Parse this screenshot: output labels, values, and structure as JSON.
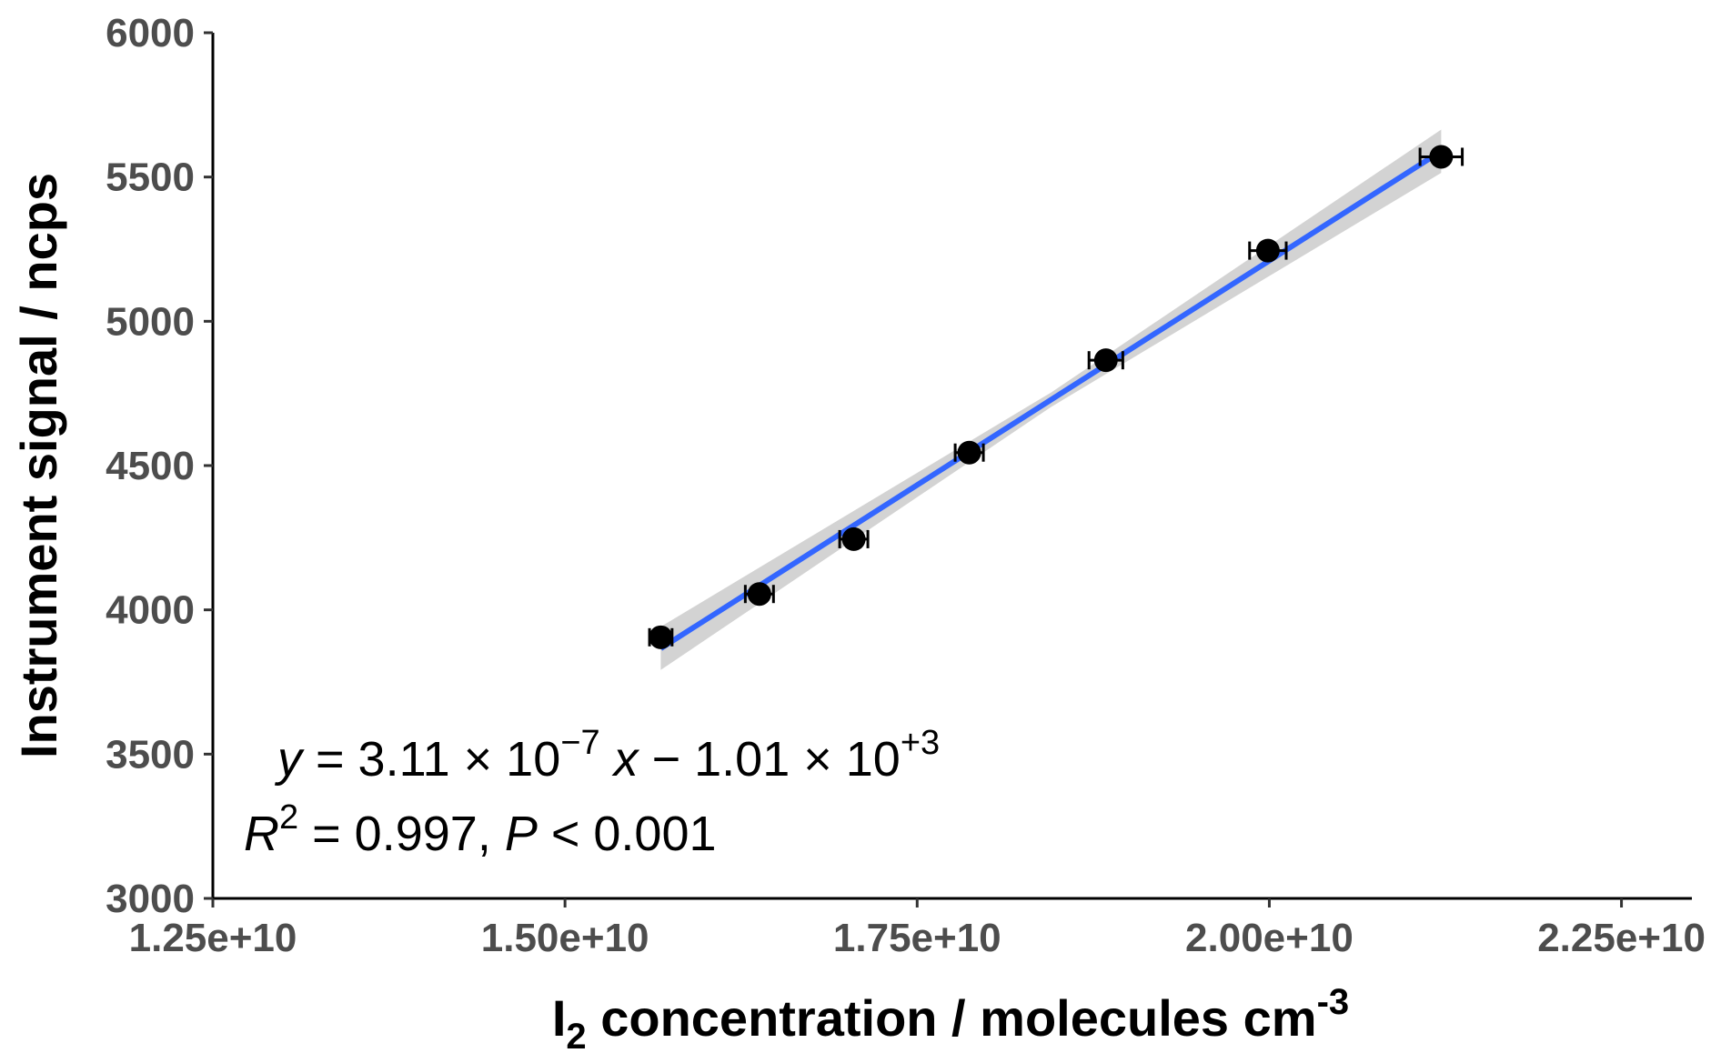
{
  "chart_data": {
    "type": "scatter",
    "xlabel": {
      "base": "I",
      "sub": "2",
      "rest": " concentration / molecules cm",
      "sup": "-3"
    },
    "ylabel": "Instrument signal / ncps",
    "xlim": [
      12500000000.0,
      23000000000.0
    ],
    "ylim": [
      3000,
      6000
    ],
    "x_ticks": [
      12500000000.0,
      15000000000.0,
      17500000000.0,
      20000000000.0,
      22500000000.0
    ],
    "x_tick_labels": [
      "1.25e+10",
      "1.50e+10",
      "1.75e+10",
      "2.00e+10",
      "2.25e+10"
    ],
    "y_ticks": [
      3000,
      3500,
      4000,
      4500,
      5000,
      5500,
      6000
    ],
    "y_tick_labels": [
      "3000",
      "3500",
      "4000",
      "4500",
      "5000",
      "5500",
      "6000"
    ],
    "points": [
      {
        "x": 15680000000.0,
        "y": 3905,
        "xerr": 80000000.0
      },
      {
        "x": 16380000000.0,
        "y": 4055,
        "xerr": 100000000.0
      },
      {
        "x": 17050000000.0,
        "y": 4245,
        "xerr": 100000000.0
      },
      {
        "x": 17870000000.0,
        "y": 4545,
        "xerr": 100000000.0
      },
      {
        "x": 18840000000.0,
        "y": 4865,
        "xerr": 120000000.0
      },
      {
        "x": 19990000000.0,
        "y": 5245,
        "xerr": 130000000.0
      },
      {
        "x": 21220000000.0,
        "y": 5570,
        "xerr": 150000000.0
      }
    ],
    "fit": {
      "slope": 3.11e-07,
      "intercept": -1010,
      "x_range": [
        15680000000.0,
        21220000000.0
      ],
      "ci_half_width": [
        75,
        25,
        75
      ],
      "line_color": "#3366ff",
      "band_color": "#c8c8c8"
    },
    "point_color": "#000000",
    "grid": false
  },
  "annotation": {
    "line1": {
      "y": "y",
      "eq": " = 3.11 × 10",
      "exp1": "−7",
      "x": " x",
      "rest": " − 1.01 × 10",
      "exp2": "+3"
    },
    "line2": {
      "R": "R",
      "exp": "2",
      "r_val": " = 0.997, ",
      "P": "P",
      "p_val": " < 0.001"
    }
  }
}
